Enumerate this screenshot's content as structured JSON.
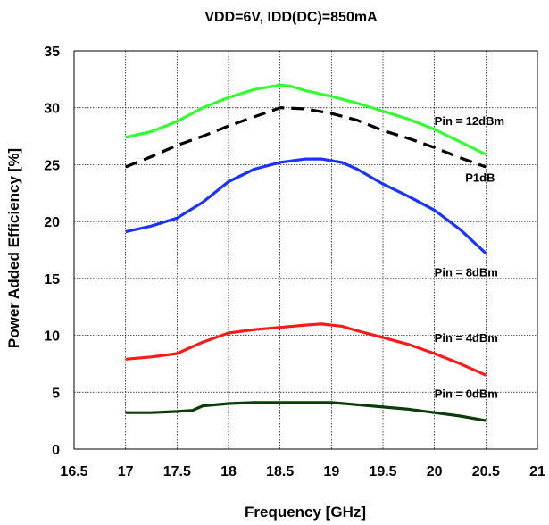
{
  "chart_data": {
    "type": "line",
    "title": "VDD=6V, IDD(DC)=850mA",
    "xlabel": "Frequency  [GHz]",
    "ylabel": "Power Added Efficiency  [%]",
    "xlim": [
      16.5,
      21
    ],
    "ylim": [
      0,
      35
    ],
    "x_ticks": [
      "16.5",
      "17",
      "17.5",
      "18",
      "18.5",
      "19",
      "19.5",
      "20",
      "20.5",
      "21"
    ],
    "y_ticks": [
      "0",
      "5",
      "10",
      "15",
      "20",
      "25",
      "30",
      "35"
    ],
    "grid": true,
    "series": [
      {
        "name": "Pin = 12dBm",
        "color": "#33ff33",
        "style": "solid",
        "x": [
          17,
          17.25,
          17.5,
          17.75,
          18,
          18.25,
          18.5,
          18.6,
          18.75,
          19,
          19.25,
          19.5,
          19.75,
          20,
          20.25,
          20.5
        ],
        "y": [
          27.4,
          27.9,
          28.8,
          30.0,
          30.9,
          31.6,
          32.0,
          31.9,
          31.5,
          31.0,
          30.4,
          29.7,
          29.0,
          28.1,
          27.0,
          25.9
        ]
      },
      {
        "name": "P1dB",
        "color": "#000000",
        "style": "dashed",
        "x": [
          17,
          17.25,
          17.5,
          17.75,
          18,
          18.25,
          18.5,
          18.75,
          19,
          19.25,
          19.5,
          19.75,
          20,
          20.25,
          20.5
        ],
        "y": [
          24.8,
          25.7,
          26.7,
          27.5,
          28.4,
          29.2,
          30.0,
          29.9,
          29.5,
          28.9,
          28.0,
          27.3,
          26.5,
          25.6,
          24.8
        ]
      },
      {
        "name": "Pin = 8dBm",
        "color": "#1a33ff",
        "style": "solid",
        "x": [
          17,
          17.25,
          17.5,
          17.75,
          18,
          18.25,
          18.5,
          18.75,
          18.9,
          19.1,
          19.25,
          19.5,
          19.75,
          20,
          20.25,
          20.5
        ],
        "y": [
          19.1,
          19.6,
          20.3,
          21.7,
          23.5,
          24.6,
          25.2,
          25.5,
          25.5,
          25.2,
          24.6,
          23.3,
          22.2,
          21.0,
          19.3,
          17.2
        ]
      },
      {
        "name": "Pin = 4dBm",
        "color": "#ff1a1a",
        "style": "solid",
        "x": [
          17,
          17.25,
          17.5,
          17.75,
          18,
          18.25,
          18.5,
          18.75,
          18.9,
          19.1,
          19.25,
          19.5,
          19.75,
          20,
          20.25,
          20.5
        ],
        "y": [
          7.9,
          8.1,
          8.4,
          9.4,
          10.2,
          10.5,
          10.7,
          10.9,
          11.0,
          10.8,
          10.4,
          9.8,
          9.2,
          8.4,
          7.5,
          6.5
        ]
      },
      {
        "name": "Pin = 0dBm",
        "color": "#0a3d0a",
        "style": "solid",
        "x": [
          17,
          17.25,
          17.5,
          17.65,
          17.75,
          18,
          18.25,
          18.5,
          18.75,
          19,
          19.25,
          19.5,
          19.75,
          20,
          20.25,
          20.5
        ],
        "y": [
          3.2,
          3.2,
          3.3,
          3.4,
          3.8,
          4.0,
          4.1,
          4.1,
          4.1,
          4.1,
          3.9,
          3.7,
          3.5,
          3.2,
          2.9,
          2.5
        ]
      }
    ],
    "annotations": [
      {
        "text": "Pin = 12dBm",
        "x": 20.0,
        "y": 28.5
      },
      {
        "text": "P1dB",
        "x": 20.3,
        "y": 23.5
      },
      {
        "text": "Pin = 8dBm",
        "x": 20.0,
        "y": 15.2
      },
      {
        "text": "Pin = 4dBm",
        "x": 20.0,
        "y": 9.4
      },
      {
        "text": "Pin = 0dBm",
        "x": 20.0,
        "y": 4.5
      }
    ]
  }
}
